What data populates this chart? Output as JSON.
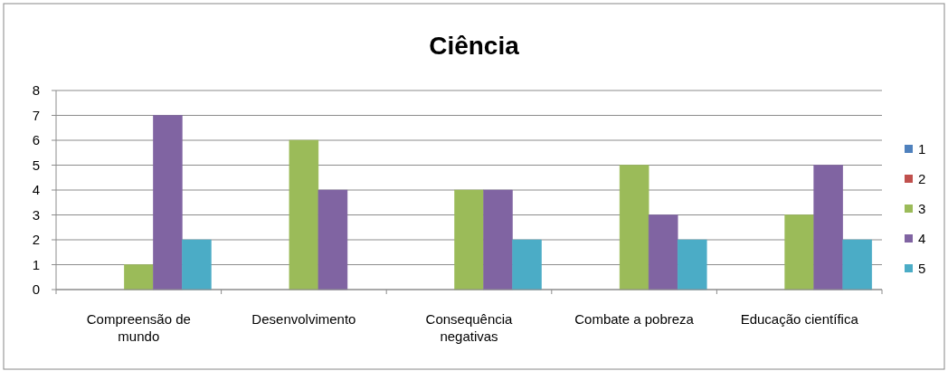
{
  "chart_data": {
    "type": "bar",
    "title": "Ciência",
    "categories": [
      "Compreensão de mundo",
      "Desenvolvimento",
      "Consequência negativas",
      "Combate a pobreza",
      "Educação científica"
    ],
    "series": [
      {
        "name": "1",
        "color": "#4f81bd",
        "values": [
          0,
          0,
          0,
          0,
          0
        ]
      },
      {
        "name": "2",
        "color": "#c0504d",
        "values": [
          0,
          0,
          0,
          0,
          0
        ]
      },
      {
        "name": "3",
        "color": "#9bbb59",
        "values": [
          1,
          6,
          4,
          5,
          3
        ]
      },
      {
        "name": "4",
        "color": "#8064a2",
        "values": [
          7,
          4,
          4,
          3,
          5
        ]
      },
      {
        "name": "5",
        "color": "#4bacc6",
        "values": [
          2,
          0,
          2,
          2,
          2
        ]
      }
    ],
    "ylim": [
      0,
      8
    ],
    "yticks": [
      0,
      1,
      2,
      3,
      4,
      5,
      6,
      7,
      8
    ],
    "grid": "y",
    "legend": "right"
  }
}
